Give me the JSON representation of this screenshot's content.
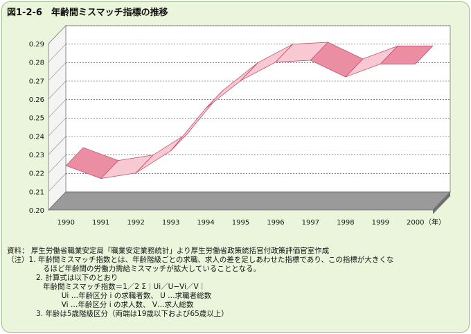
{
  "figure": {
    "number": "図1-2-6",
    "title": "年齢間ミスマッチ指標の推移"
  },
  "chart_data": {
    "type": "line",
    "style": "3d-ribbon",
    "x": [
      "1990",
      "1991",
      "1992",
      "1993",
      "1994",
      "1995",
      "1996",
      "1997",
      "1998",
      "1999",
      "2000"
    ],
    "x_unit": "（年）",
    "series": [
      {
        "values": [
          0.224,
          0.217,
          0.22,
          0.232,
          0.255,
          0.27,
          0.28,
          0.281,
          0.272,
          0.279,
          0.279
        ]
      }
    ],
    "ylim": [
      0.2,
      0.29
    ],
    "yticks": [
      "0.20",
      "0.21",
      "0.22",
      "0.23",
      "0.24",
      "0.25",
      "0.26",
      "0.27",
      "0.28",
      "0.29"
    ],
    "grid": true,
    "colors": {
      "ribbon_top": "#f8c9d3",
      "ribbon_front": "#ec8ea3",
      "ribbon_edge": "#c0506b",
      "wall": "#ffffff",
      "floor": "#9a9a9a",
      "grid": "#333333"
    }
  },
  "notes": {
    "source_label": "資料：",
    "source": "厚生労働省職業安定局「職業安定業務統計」より厚生労働省政策統括官付政策評価官室作成",
    "notes_label": "（注）",
    "items": [
      "1. 年齢間ミスマッチ指数とは、年齢階級ごとの求職、求人の差を足しあわせた指標であり、この指標が大きくな",
      "   るほど年齢間の労働力需給ミスマッチが拡大していることとなる。",
      "2. 計算式は以下のとおり",
      "   年齢間ミスマッチ指数＝1／2 Σ｜Ui／U−Vi／V｜",
      "           Ui …年齢区分 i の求職者数、 U …求職者総数",
      "           Vi …年齢区分 i の求人数、 V…求人総数",
      "3. 年齢は5歳階級区分（両端は19歳以下および65歳以上）"
    ]
  }
}
